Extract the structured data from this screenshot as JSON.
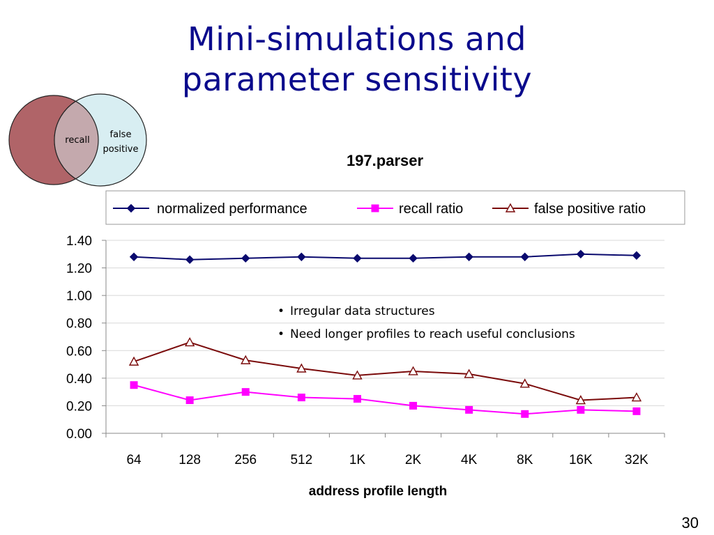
{
  "slide": {
    "title_line1": "Mini-simulations and",
    "title_line2": "parameter sensitivity",
    "page_number": "30"
  },
  "venn": {
    "left_label": "recall",
    "right_label_line1": "false",
    "right_label_line2": "positive",
    "left_color": "#b06468",
    "right_color": "#d8eef2",
    "overlap_color": "#c4a9ad"
  },
  "notes": [
    "Irregular data structures",
    "Need longer profiles to reach useful conclusions"
  ],
  "chart_data": {
    "type": "line",
    "title": "197.parser",
    "xlabel": "address profile length",
    "ylabel": "",
    "categories": [
      "64",
      "128",
      "256",
      "512",
      "1K",
      "2K",
      "4K",
      "8K",
      "16K",
      "32K"
    ],
    "ylim": [
      0,
      1.4
    ],
    "yticks": [
      "0.00",
      "0.20",
      "0.40",
      "0.60",
      "0.80",
      "1.00",
      "1.20",
      "1.40"
    ],
    "ytick_values": [
      0,
      0.2,
      0.4,
      0.6,
      0.8,
      1.0,
      1.2,
      1.4
    ],
    "grid": true,
    "legend_position": "top",
    "series": [
      {
        "name": "normalized performance",
        "color": "#0a0a6e",
        "marker": "diamond",
        "values": [
          1.28,
          1.26,
          1.27,
          1.28,
          1.27,
          1.27,
          1.28,
          1.28,
          1.3,
          1.29
        ]
      },
      {
        "name": "recall ratio",
        "color": "#ff00ff",
        "marker": "square",
        "values": [
          0.35,
          0.24,
          0.3,
          0.26,
          0.25,
          0.2,
          0.17,
          0.14,
          0.17,
          0.16
        ]
      },
      {
        "name": "false positive ratio",
        "color": "#7a0a0a",
        "marker": "triangle-open",
        "values": [
          0.52,
          0.66,
          0.53,
          0.47,
          0.42,
          0.45,
          0.43,
          0.36,
          0.24,
          0.26
        ]
      }
    ]
  }
}
